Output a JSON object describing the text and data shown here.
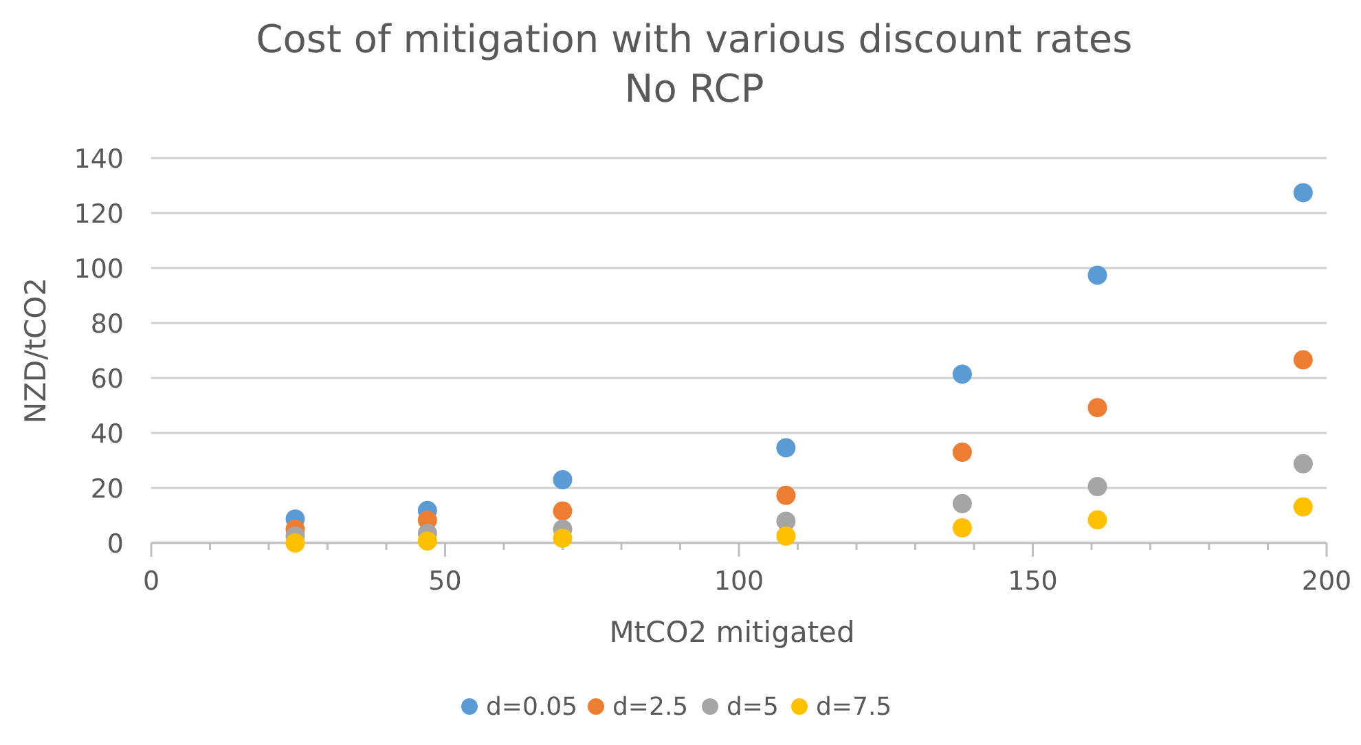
{
  "chart_data": {
    "type": "scatter",
    "title": "Cost of mitigation with various discount rates\nNo RCP",
    "xlabel": "MtCO2 mitigated",
    "ylabel": "NZD/tCO2",
    "x": [
      24.5,
      47,
      70,
      108,
      138,
      161,
      196
    ],
    "series": [
      {
        "name": "d=0.05",
        "color": "#5b9bd5",
        "values": [
          8.7,
          11.8,
          23,
          34.6,
          61.4,
          97.4,
          127.4
        ]
      },
      {
        "name": "d=2.5",
        "color": "#ed7d31",
        "values": [
          5,
          8.3,
          11.6,
          17.3,
          33,
          49.2,
          66.6
        ]
      },
      {
        "name": "d=5",
        "color": "#a5a5a5",
        "values": [
          2.5,
          3.5,
          5,
          7.9,
          14.3,
          20.5,
          28.8
        ]
      },
      {
        "name": "d=7.5",
        "color": "#ffc000",
        "values": [
          0,
          0.7,
          1.7,
          2.5,
          5.5,
          8.4,
          13.1
        ]
      }
    ],
    "xlim": [
      0,
      200
    ],
    "ylim": [
      0,
      140
    ],
    "xticks": [
      0,
      {
        "value": 10,
        "label": null
      },
      {
        "value": 20,
        "label": null
      },
      {
        "value": 30,
        "label": null
      },
      {
        "value": 40,
        "label": null
      },
      50,
      {
        "value": 60,
        "label": null
      },
      {
        "value": 70,
        "label": null
      },
      {
        "value": 80,
        "label": null
      },
      {
        "value": 90,
        "label": null
      },
      100,
      {
        "value": 110,
        "label": null
      },
      {
        "value": 120,
        "label": null
      },
      {
        "value": 130,
        "label": null
      },
      {
        "value": 140,
        "label": null
      },
      150,
      {
        "value": 160,
        "label": null
      },
      {
        "value": 170,
        "label": null
      },
      {
        "value": 180,
        "label": null
      },
      {
        "value": 190,
        "label": null
      },
      200
    ],
    "yticks": [
      0,
      20,
      40,
      60,
      80,
      100,
      120,
      140
    ],
    "grid": "y",
    "legend": "bottom",
    "marker": "circle"
  }
}
